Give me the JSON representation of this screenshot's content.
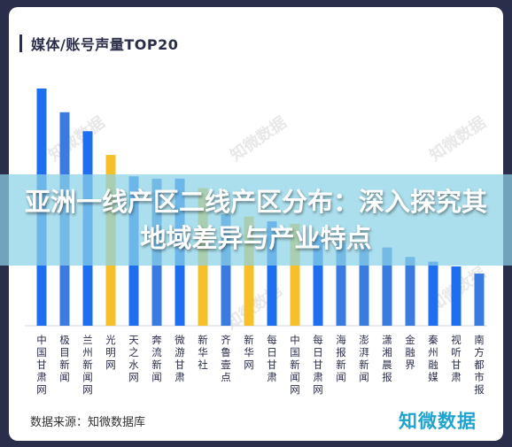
{
  "banner": {
    "text": "亚洲一线产区二线产区分布：深入探究其地域差异与产业特点"
  },
  "chart_data": {
    "type": "bar",
    "title": "媒体/账号声量TOP20",
    "categories": [
      "中国甘肃网",
      "极目新闻",
      "兰州新闻网",
      "光明网",
      "天之水网",
      "奔流新闻",
      "微游甘肃",
      "新华社",
      "齐鲁壹点",
      "新华网",
      "每日甘肃",
      "中国新闻网",
      "每日甘肃网",
      "海报新闻",
      "澎湃新闻",
      "潇湘晨报",
      "金融界",
      "秦州融媒",
      "视听甘肃",
      "南方都市报"
    ],
    "values": [
      100,
      90,
      82,
      72,
      63,
      62,
      62,
      58,
      47,
      46,
      44,
      43,
      38,
      35,
      34,
      33,
      29,
      27,
      25,
      22
    ],
    "colors": [
      "#1e6ef0",
      "#3a7be0",
      "#1e6ef0",
      "#f5c02a",
      "#1e6ef0",
      "#3a7be0",
      "#1e6ef0",
      "#f5c02a",
      "#3a7be0",
      "#f5c02a",
      "#1e6ef0",
      "#f5c02a",
      "#1e6ef0",
      "#3a7be0",
      "#3a7be0",
      "#3a7be0",
      "#3a7be0",
      "#1e6ef0",
      "#1e6ef0",
      "#3a7be0"
    ],
    "ylim": [
      0,
      100
    ],
    "source": "数据来源：知微数据库",
    "logo": "知微数据",
    "watermark": "知微数据"
  }
}
